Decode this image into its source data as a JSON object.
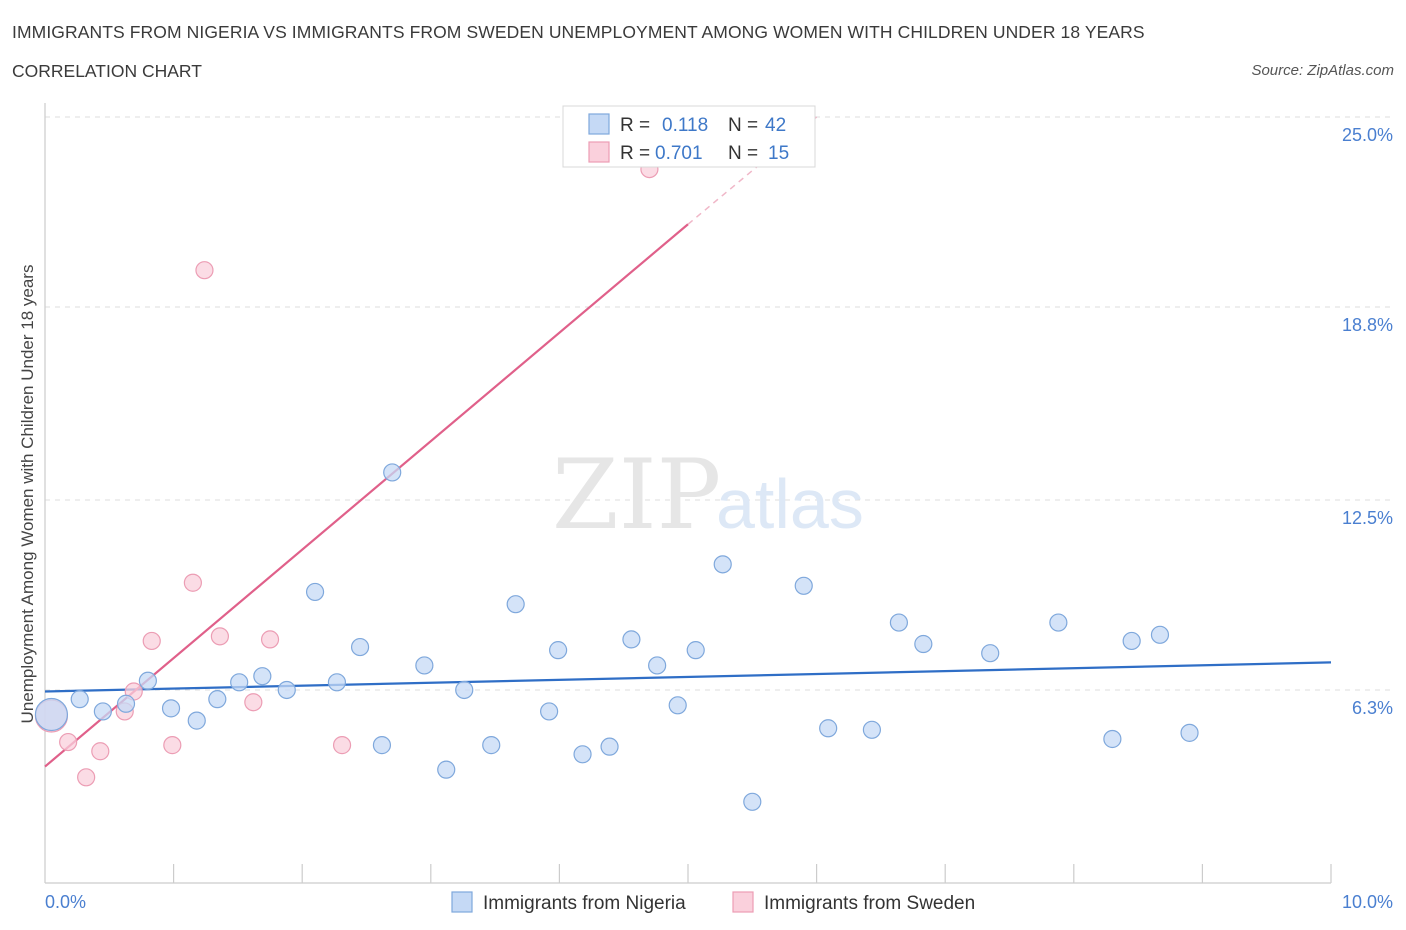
{
  "header": {
    "title": "IMMIGRANTS FROM NIGERIA VS IMMIGRANTS FROM SWEDEN UNEMPLOYMENT AMONG WOMEN WITH CHILDREN UNDER 18 YEARS",
    "subtitle": "CORRELATION CHART",
    "source": "Source: ZipAtlas.com"
  },
  "watermark": {
    "zip": "ZIP",
    "atlas": "atlas"
  },
  "colors": {
    "nigeria_fill": "#c5d9f5",
    "nigeria_stroke": "#7fa8dc",
    "nigeria_line": "#2f6ec6",
    "sweden_fill": "#fad0dc",
    "sweden_stroke": "#ec9db4",
    "sweden_line": "#e0608a",
    "grid": "#dcdcdc",
    "tick_text": "#4a7fd0"
  },
  "legend": {
    "rows": [
      {
        "r_label": "R =",
        "r_value": "0.118",
        "n_label": "N =",
        "n_value": "42"
      },
      {
        "r_label": "R =",
        "r_value": "0.701",
        "n_label": "N =",
        "n_value": "15"
      }
    ]
  },
  "bottom_legend": [
    "Immigrants from Nigeria",
    "Immigrants from Sweden"
  ],
  "chart_data": {
    "type": "scatter",
    "title": "IMMIGRANTS FROM NIGERIA VS IMMIGRANTS FROM SWEDEN UNEMPLOYMENT AMONG WOMEN WITH CHILDREN UNDER 18 YEARS",
    "xlabel": "",
    "ylabel": "Unemployment Among Women with Children Under 18 years",
    "xlim": [
      0,
      10
    ],
    "ylim": [
      0,
      25
    ],
    "x_tick_labels": [
      "0.0%",
      "10.0%"
    ],
    "y_ticks": [
      6.3,
      12.5,
      18.8,
      25.0
    ],
    "y_tick_labels": [
      "6.3%",
      "12.5%",
      "18.8%",
      "25.0%"
    ],
    "grid": true,
    "legend_position": "top-center",
    "series": [
      {
        "name": "Immigrants from Nigeria",
        "r": 0.118,
        "n": 42,
        "trend": {
          "x": [
            0,
            10
          ],
          "y": [
            6.25,
            7.2
          ]
        },
        "points": [
          {
            "x": 0.05,
            "y": 5.5,
            "big": true
          },
          {
            "x": 0.27,
            "y": 6.0
          },
          {
            "x": 0.45,
            "y": 5.6
          },
          {
            "x": 0.63,
            "y": 5.85
          },
          {
            "x": 0.8,
            "y": 6.6
          },
          {
            "x": 0.98,
            "y": 5.7
          },
          {
            "x": 1.18,
            "y": 5.3
          },
          {
            "x": 1.34,
            "y": 6.0
          },
          {
            "x": 1.51,
            "y": 6.55
          },
          {
            "x": 1.69,
            "y": 6.75
          },
          {
            "x": 1.88,
            "y": 6.3
          },
          {
            "x": 2.1,
            "y": 9.5
          },
          {
            "x": 2.27,
            "y": 6.55
          },
          {
            "x": 2.45,
            "y": 7.7
          },
          {
            "x": 2.62,
            "y": 4.5
          },
          {
            "x": 2.7,
            "y": 13.4
          },
          {
            "x": 2.95,
            "y": 7.1
          },
          {
            "x": 3.12,
            "y": 3.7
          },
          {
            "x": 3.26,
            "y": 6.3
          },
          {
            "x": 3.47,
            "y": 4.5
          },
          {
            "x": 3.66,
            "y": 9.1
          },
          {
            "x": 3.92,
            "y": 5.6
          },
          {
            "x": 3.99,
            "y": 7.6
          },
          {
            "x": 4.18,
            "y": 4.2
          },
          {
            "x": 4.39,
            "y": 4.45
          },
          {
            "x": 4.56,
            "y": 7.95
          },
          {
            "x": 4.76,
            "y": 7.1
          },
          {
            "x": 4.92,
            "y": 5.8
          },
          {
            "x": 5.06,
            "y": 7.6
          },
          {
            "x": 5.27,
            "y": 10.4
          },
          {
            "x": 5.5,
            "y": 2.65
          },
          {
            "x": 5.9,
            "y": 9.7
          },
          {
            "x": 6.09,
            "y": 5.05
          },
          {
            "x": 6.43,
            "y": 5.0
          },
          {
            "x": 6.64,
            "y": 8.5
          },
          {
            "x": 6.83,
            "y": 7.8
          },
          {
            "x": 7.35,
            "y": 7.5
          },
          {
            "x": 7.88,
            "y": 8.5
          },
          {
            "x": 8.3,
            "y": 4.7
          },
          {
            "x": 8.45,
            "y": 7.9
          },
          {
            "x": 8.67,
            "y": 8.1
          },
          {
            "x": 8.9,
            "y": 4.9
          }
        ]
      },
      {
        "name": "Immigrants from Sweden",
        "r": 0.701,
        "n": 15,
        "trend": {
          "x": [
            0,
            5.0
          ],
          "y": [
            3.8,
            21.5
          ]
        },
        "trend_dashed": {
          "x": [
            5.0,
            6.0
          ],
          "y": [
            21.5,
            25.0
          ]
        },
        "points": [
          {
            "x": 0.05,
            "y": 5.45,
            "big": true
          },
          {
            "x": 0.18,
            "y": 4.6
          },
          {
            "x": 0.32,
            "y": 3.45
          },
          {
            "x": 0.43,
            "y": 4.3
          },
          {
            "x": 0.62,
            "y": 5.6
          },
          {
            "x": 0.69,
            "y": 6.25
          },
          {
            "x": 0.83,
            "y": 7.9
          },
          {
            "x": 0.99,
            "y": 4.5
          },
          {
            "x": 1.15,
            "y": 9.8
          },
          {
            "x": 1.24,
            "y": 20.0
          },
          {
            "x": 1.36,
            "y": 8.05
          },
          {
            "x": 1.62,
            "y": 5.9
          },
          {
            "x": 1.75,
            "y": 7.95
          },
          {
            "x": 2.31,
            "y": 4.5
          },
          {
            "x": 4.7,
            "y": 23.3
          }
        ]
      }
    ]
  }
}
